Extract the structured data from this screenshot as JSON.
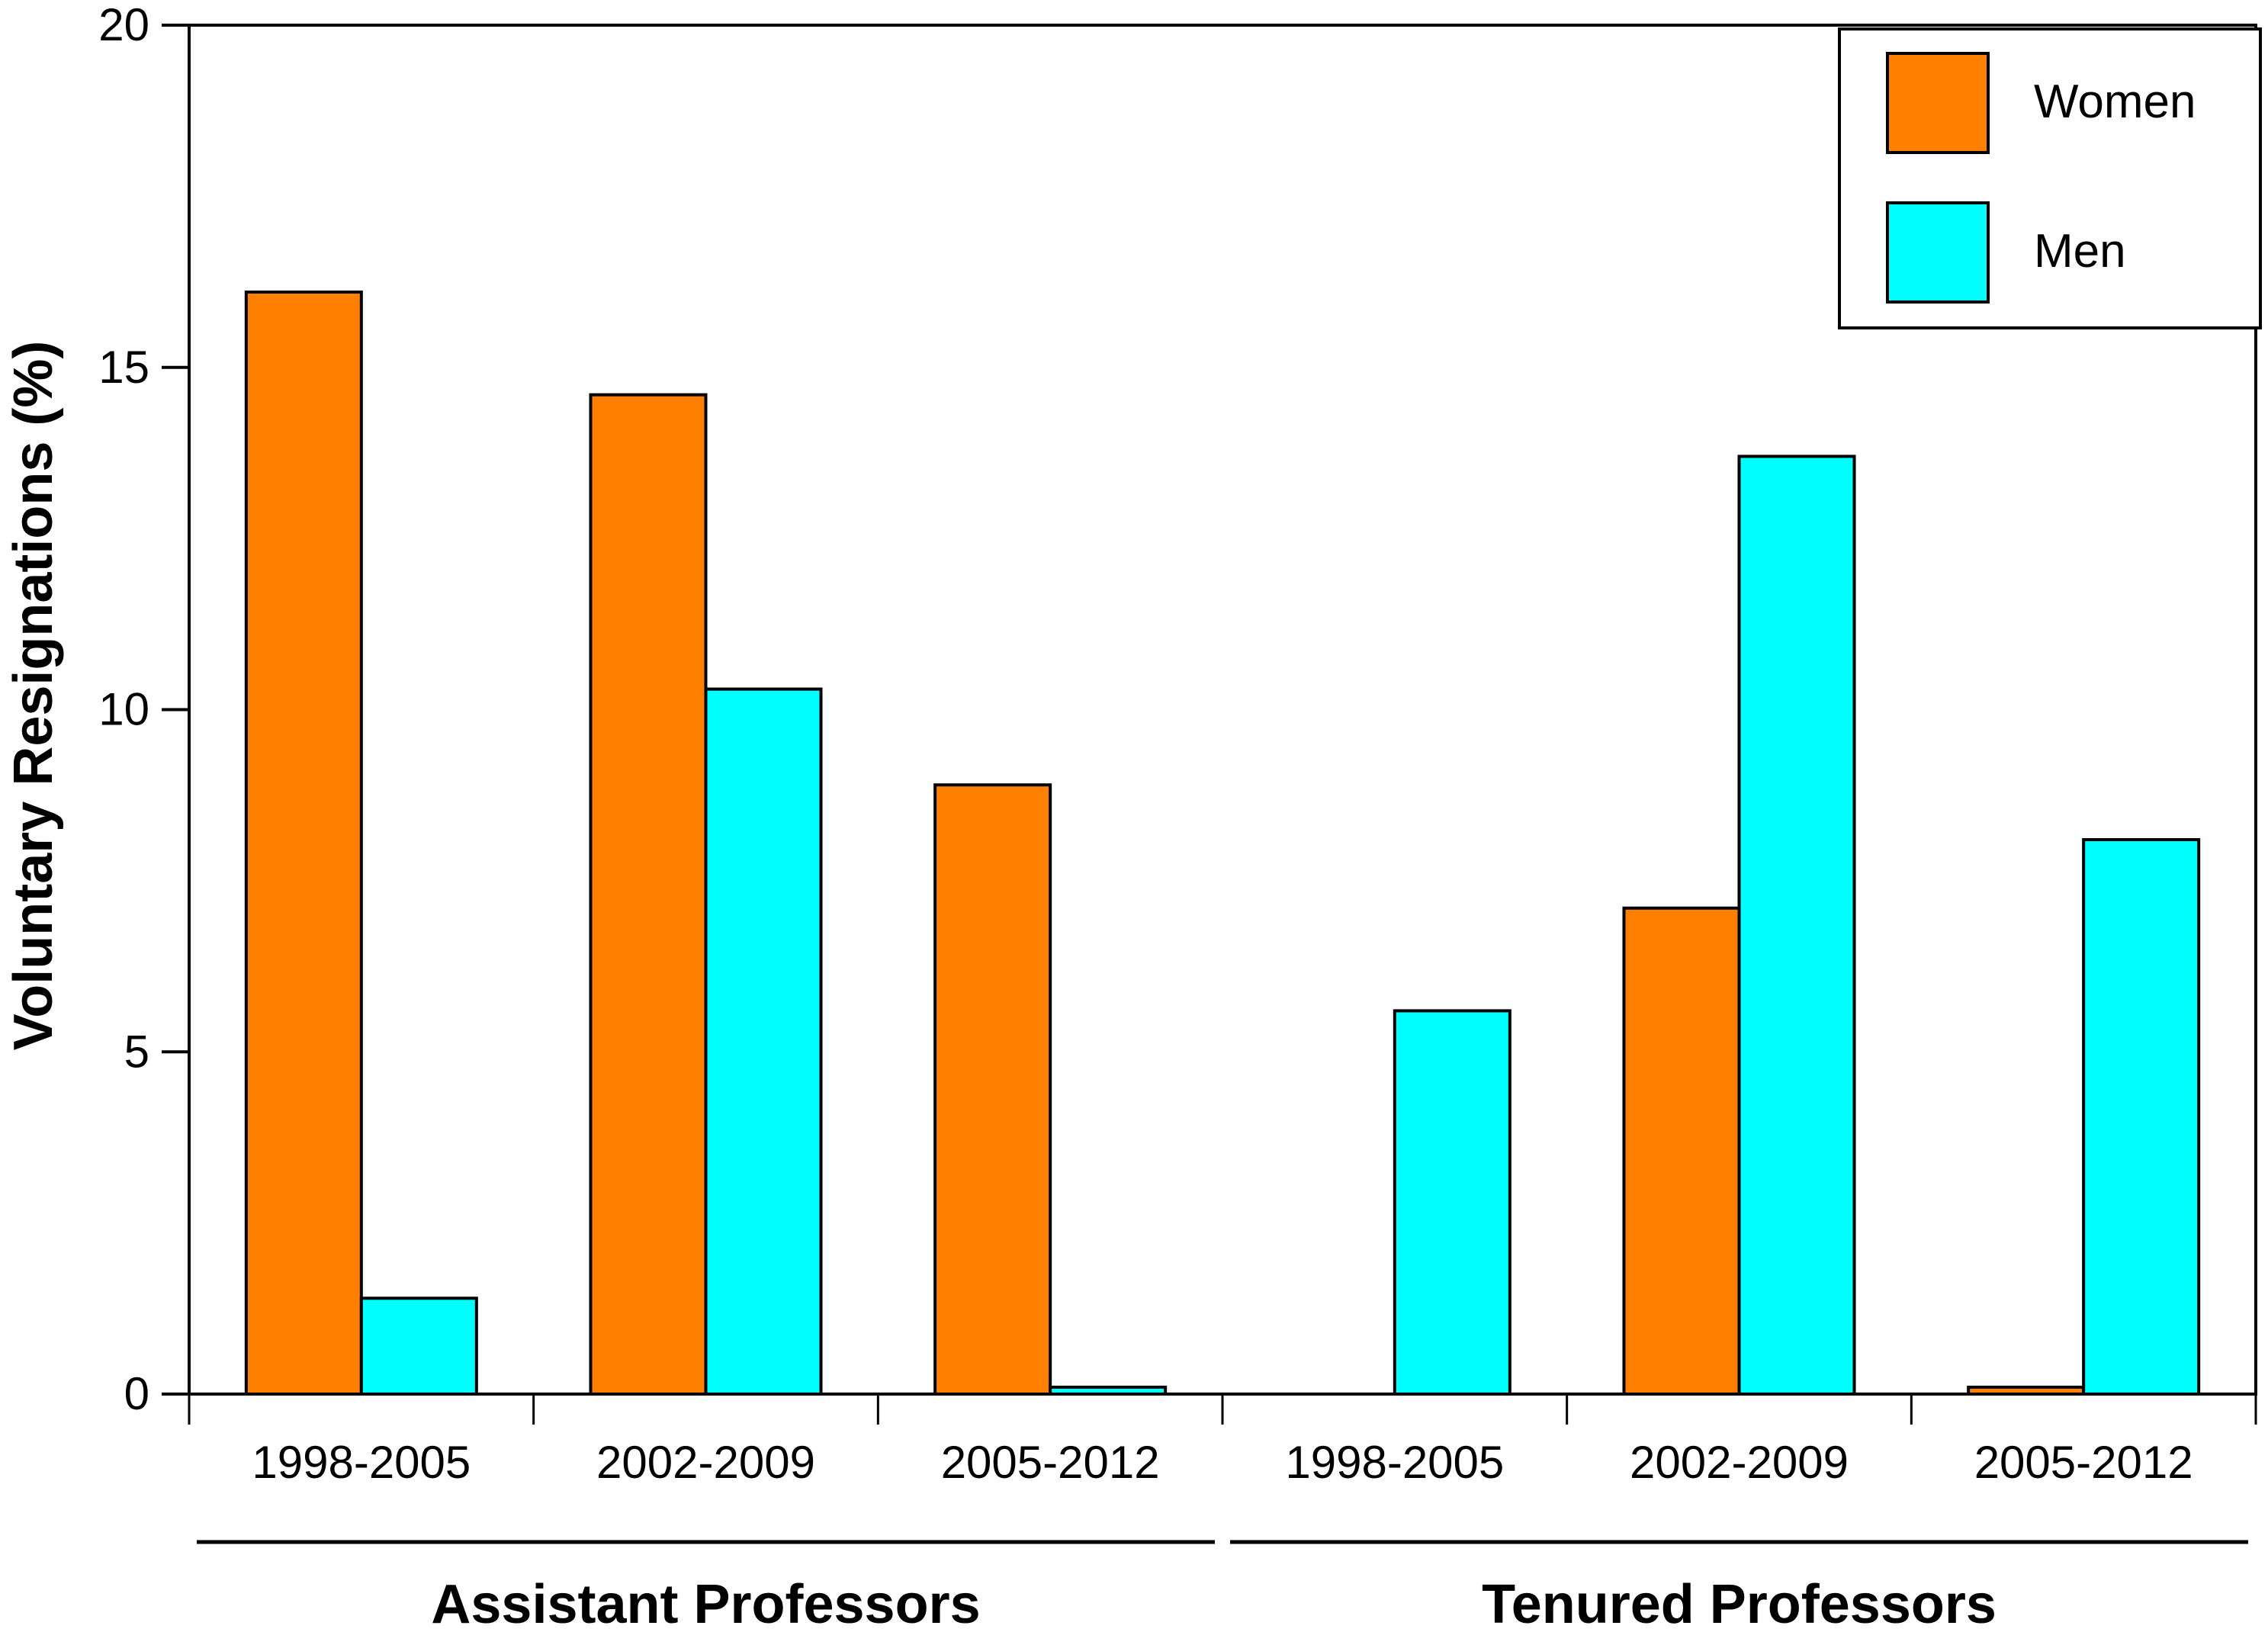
{
  "chart_data": {
    "type": "bar",
    "ylabel": "Voluntary Resignations (%)",
    "ylim": [
      0,
      20
    ],
    "yticks": [
      "0",
      "5",
      "10",
      "15",
      "20"
    ],
    "grid": false,
    "legend_position": "top-right",
    "categories": [
      "1998-2005",
      "2002-2009",
      "2005-2012",
      "1998-2005",
      "2002-2009",
      "2005-2012"
    ],
    "groups": [
      {
        "label": "Assistant Professors",
        "categories": [
          0,
          1,
          2
        ]
      },
      {
        "label": "Tenured Professors",
        "categories": [
          3,
          4,
          5
        ]
      }
    ],
    "series": [
      {
        "name": "Women",
        "color": "#ff8000",
        "values": [
          16.1,
          14.6,
          8.9,
          0,
          7.1,
          0.1
        ]
      },
      {
        "name": "Men",
        "color": "#00ffff",
        "values": [
          1.4,
          10.3,
          0.1,
          5.6,
          13.7,
          8.1
        ]
      }
    ]
  }
}
